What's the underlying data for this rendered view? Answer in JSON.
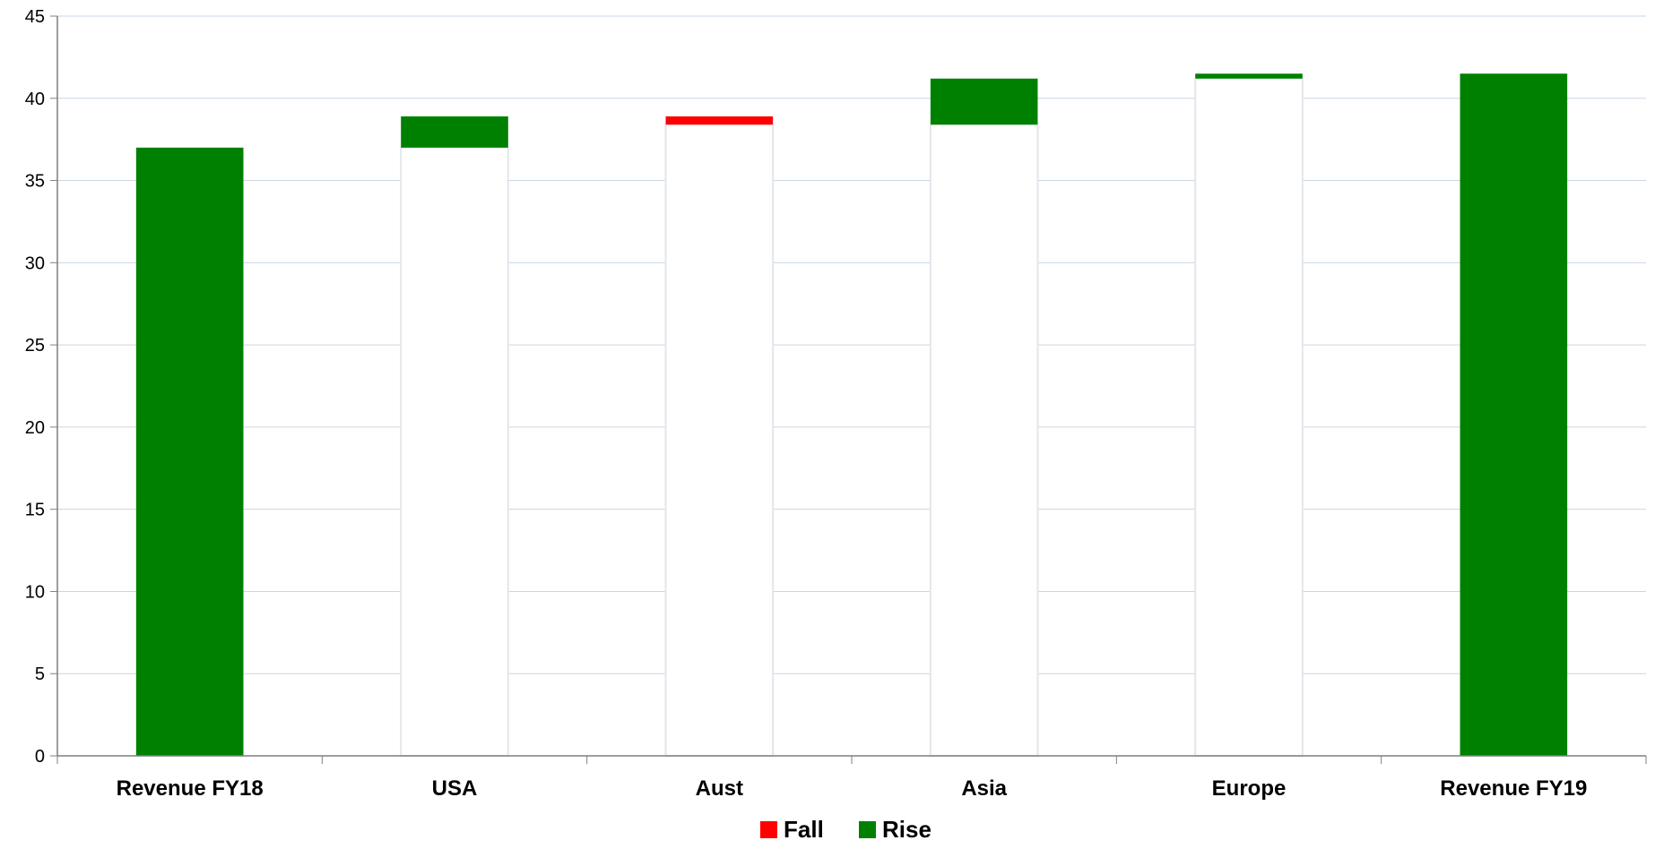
{
  "chart_data": {
    "type": "bar",
    "subtype": "waterfall",
    "title": "",
    "xlabel": "",
    "ylabel": "",
    "ylim": [
      0,
      45
    ],
    "yticks": [
      0,
      5,
      10,
      15,
      20,
      25,
      30,
      35,
      40,
      45
    ],
    "grid": true,
    "legend_position": "bottom",
    "categories": [
      "Revenue FY18",
      "USA",
      "Aust",
      "Asia",
      "Europe",
      "Revenue FY19"
    ],
    "series": [
      {
        "name": "",
        "role": "base",
        "values": [
          0,
          37.0,
          38.4,
          38.4,
          41.2,
          0
        ],
        "color": "#ffffff"
      },
      {
        "name": "Fall",
        "values": [
          0,
          0,
          0.5,
          0,
          0,
          0
        ],
        "color": "#ff0000"
      },
      {
        "name": "Rise",
        "values": [
          37.0,
          1.9,
          0,
          2.8,
          0.3,
          41.5
        ],
        "color": "#008000"
      }
    ],
    "legend": [
      {
        "label": "Fall",
        "color": "#ff0000"
      },
      {
        "label": "Rise",
        "color": "#008000"
      }
    ]
  }
}
